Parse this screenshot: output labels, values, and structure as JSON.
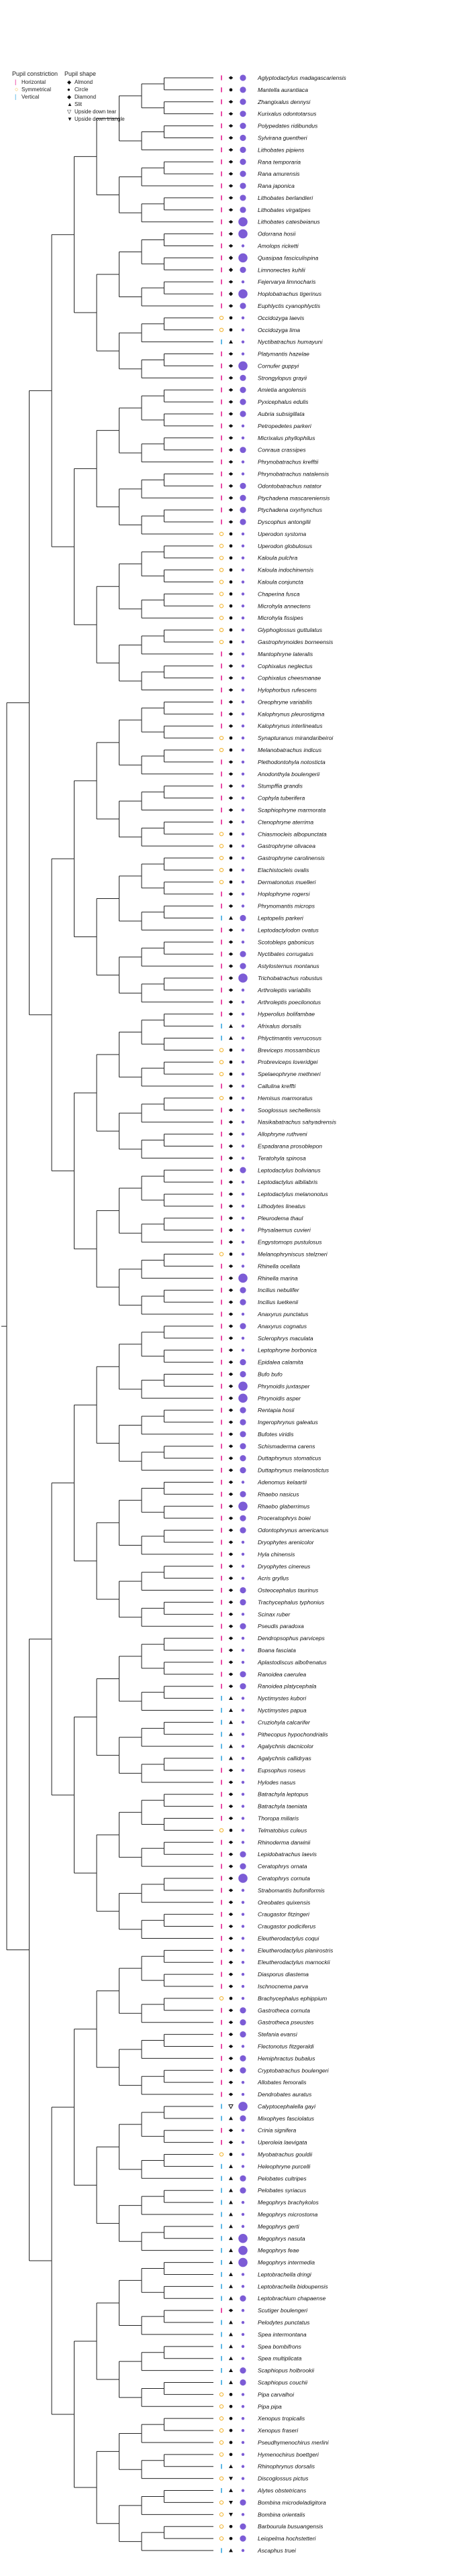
{
  "legend": {
    "constriction_title": "Pupil constriction",
    "shape_title": "Pupil shape",
    "constriction": [
      {
        "label": "Horizontal",
        "color": "#e41a8f",
        "glyph": "|"
      },
      {
        "label": "Symmetrical",
        "color": "#f2b530",
        "glyph": "○"
      },
      {
        "label": "Vertical",
        "color": "#33a6e0",
        "glyph": "|"
      }
    ],
    "shapes": [
      {
        "label": "Almond",
        "glyph": "◆"
      },
      {
        "label": "Circle",
        "glyph": "●"
      },
      {
        "label": "Diamond",
        "glyph": "◆"
      },
      {
        "label": "Slit",
        "glyph": "▲"
      },
      {
        "label": "Upside down tear",
        "glyph": "▽"
      },
      {
        "label": "Upside down triangle",
        "glyph": "▼"
      }
    ]
  },
  "colors": {
    "horizontal": "#e41a8f",
    "symmetrical": "#f2b530",
    "vertical": "#33a6e0",
    "size": "#7c5cd6",
    "line": "#222222"
  },
  "species": [
    [
      "Aglyptodactylus madagascariensis",
      "h",
      "almond",
      2
    ],
    [
      "Mantella aurantiaca",
      "h",
      "circle",
      2
    ],
    [
      "Zhangixalus dennysi",
      "h",
      "almond",
      2
    ],
    [
      "Kurixalus odontotarsus",
      "h",
      "almond",
      2
    ],
    [
      "Polypedates ridibundus",
      "h",
      "almond",
      2
    ],
    [
      "Sylvirana guentheri",
      "h",
      "almond",
      2
    ],
    [
      "Lithobates pipiens",
      "h",
      "almond",
      2
    ],
    [
      "Rana temporaria",
      "h",
      "almond",
      2
    ],
    [
      "Rana amurensis",
      "h",
      "almond",
      2
    ],
    [
      "Rana japonica",
      "h",
      "almond",
      2
    ],
    [
      "Lithobates berlandieri",
      "h",
      "almond",
      2
    ],
    [
      "Lithobates virgatipes",
      "h",
      "almond",
      2
    ],
    [
      "Lithobates catesbeianus",
      "h",
      "almond",
      3
    ],
    [
      "Odorrana hosii",
      "h",
      "almond",
      3
    ],
    [
      "Amolops ricketti",
      "h",
      "almond",
      1
    ],
    [
      "Quasipaa fasciculispina",
      "h",
      "diamond",
      3
    ],
    [
      "Limnonectes kuhlii",
      "h",
      "diamond",
      2
    ],
    [
      "Fejervarya limnocharis",
      "h",
      "almond",
      1
    ],
    [
      "Hoplobatrachus tigerinus",
      "h",
      "diamond",
      3
    ],
    [
      "Euphlyctis cyanophlyctis",
      "h",
      "almond",
      2
    ],
    [
      "Occidozyga laevis",
      "s",
      "circle",
      1
    ],
    [
      "Occidozyga lima",
      "s",
      "circle",
      1
    ],
    [
      "Nyctibatrachus humayuni",
      "v",
      "slit",
      1
    ],
    [
      "Platymantis hazelae",
      "h",
      "almond",
      1
    ],
    [
      "Cornufer guppyi",
      "h",
      "almond",
      3
    ],
    [
      "Strongylopus grayii",
      "h",
      "almond",
      2
    ],
    [
      "Amietia angolensis",
      "h",
      "almond",
      2
    ],
    [
      "Pyxicephalus edulis",
      "h",
      "almond",
      2
    ],
    [
      "Aubria subsigillata",
      "h",
      "almond",
      2
    ],
    [
      "Petropedetes parkeri",
      "h",
      "almond",
      1
    ],
    [
      "Micrixalus phyllophilus",
      "h",
      "almond",
      1
    ],
    [
      "Conraua crassipes",
      "h",
      "almond",
      2
    ],
    [
      "Phrynobatrachus krefftii",
      "h",
      "almond",
      1
    ],
    [
      "Phrynobatrachus natalensis",
      "h",
      "almond",
      1
    ],
    [
      "Odontobatrachus natator",
      "h",
      "almond",
      2
    ],
    [
      "Ptychadena mascareniensis",
      "h",
      "almond",
      2
    ],
    [
      "Ptychadena oxyrhynchus",
      "h",
      "almond",
      2
    ],
    [
      "Dyscophus antongilii",
      "h",
      "almond",
      2
    ],
    [
      "Uperodon systoma",
      "s",
      "circle",
      1
    ],
    [
      "Uperodon globulosus",
      "s",
      "circle",
      1
    ],
    [
      "Kaloula pulchra",
      "s",
      "circle",
      1
    ],
    [
      "Kaloula indochinensis",
      "s",
      "circle",
      1
    ],
    [
      "Kaloula conjuncta",
      "s",
      "circle",
      1
    ],
    [
      "Chaperina fusca",
      "s",
      "circle",
      1
    ],
    [
      "Microhyla annectens",
      "s",
      "circle",
      1
    ],
    [
      "Microhyla fissipes",
      "s",
      "circle",
      1
    ],
    [
      "Glyphoglossus guttulatus",
      "s",
      "circle",
      1
    ],
    [
      "Gastrophrynoides borneensis",
      "s",
      "circle",
      1
    ],
    [
      "Mantophryne lateralis",
      "h",
      "almond",
      1
    ],
    [
      "Cophixalus neglectus",
      "h",
      "almond",
      1
    ],
    [
      "Cophixalus cheesmanae",
      "h",
      "almond",
      1
    ],
    [
      "Hylophorbus rufescens",
      "h",
      "almond",
      1
    ],
    [
      "Oreophryne variabilis",
      "h",
      "almond",
      1
    ],
    [
      "Kalophrynus pleurostigma",
      "h",
      "almond",
      1
    ],
    [
      "Kalophrynus interlineatus",
      "h",
      "almond",
      1
    ],
    [
      "Synapturanus mirandaribeiroi",
      "s",
      "circle",
      1
    ],
    [
      "Melanobatrachus indicus",
      "s",
      "circle",
      1
    ],
    [
      "Plethodontohyla notosticta",
      "h",
      "almond",
      1
    ],
    [
      "Anodonthyla boulengerii",
      "h",
      "almond",
      1
    ],
    [
      "Stumpffia grandis",
      "h",
      "almond",
      1
    ],
    [
      "Cophyla tuberifera",
      "h",
      "almond",
      1
    ],
    [
      "Scaphiophryne marmorata",
      "h",
      "almond",
      1
    ],
    [
      "Ctenophryne aterrima",
      "h",
      "almond",
      1
    ],
    [
      "Chiasmocleis albopunctata",
      "s",
      "circle",
      1
    ],
    [
      "Gastrophryne olivacea",
      "s",
      "circle",
      1
    ],
    [
      "Gastrophryne carolinensis",
      "s",
      "circle",
      1
    ],
    [
      "Elachistocleis ovalis",
      "s",
      "circle",
      1
    ],
    [
      "Dermatonotus muelleri",
      "s",
      "circle",
      1
    ],
    [
      "Hoplophryne rogersi",
      "h",
      "almond",
      1
    ],
    [
      "Phrynomantis microps",
      "h",
      "almond",
      1
    ],
    [
      "Leptopelis parkeri",
      "v",
      "slit",
      2
    ],
    [
      "Leptodactylodon ovatus",
      "h",
      "almond",
      1
    ],
    [
      "Scotobleps gabonicus",
      "h",
      "almond",
      1
    ],
    [
      "Nyctibates corrugatus",
      "h",
      "almond",
      2
    ],
    [
      "Astylosternus montanus",
      "h",
      "almond",
      2
    ],
    [
      "Trichobatrachus robustus",
      "h",
      "almond",
      3
    ],
    [
      "Arthroleptis variabilis",
      "h",
      "almond",
      1
    ],
    [
      "Arthroleptis poecilonotus",
      "h",
      "almond",
      1
    ],
    [
      "Hyperolius bolifambae",
      "h",
      "almond",
      1
    ],
    [
      "Afrixalus dorsalis",
      "v",
      "slit",
      1
    ],
    [
      "Phlyctimantis verrucosus",
      "v",
      "slit",
      1
    ],
    [
      "Breviceps mossambicus",
      "s",
      "circle",
      1
    ],
    [
      "Probreviceps loveridgei",
      "s",
      "circle",
      1
    ],
    [
      "Spelaeophryne methneri",
      "s",
      "circle",
      1
    ],
    [
      "Callulina kreffti",
      "h",
      "almond",
      1
    ],
    [
      "Hemisus marmoratus",
      "s",
      "circle",
      1
    ],
    [
      "Sooglossus sechellensis",
      "h",
      "almond",
      1
    ],
    [
      "Nasikabatrachus sahyadrensis",
      "h",
      "almond",
      1
    ],
    [
      "Allophryne ruthveni",
      "h",
      "almond",
      1
    ],
    [
      "Espadarana prosoblepon",
      "h",
      "almond",
      1
    ],
    [
      "Teratohyla spinosa",
      "h",
      "almond",
      1
    ],
    [
      "Leptodactylus bolivianus",
      "h",
      "almond",
      2
    ],
    [
      "Leptodactylus albilabris",
      "h",
      "almond",
      1
    ],
    [
      "Leptodactylus melanonotus",
      "h",
      "almond",
      1
    ],
    [
      "Lithodytes lineatus",
      "h",
      "almond",
      1
    ],
    [
      "Pleurodema thaul",
      "h",
      "almond",
      1
    ],
    [
      "Physalaemus cuvieri",
      "h",
      "almond",
      1
    ],
    [
      "Engystomops pustulosus",
      "h",
      "almond",
      1
    ],
    [
      "Melanophryniscus stelzneri",
      "s",
      "circle",
      1
    ],
    [
      "Rhinella ocellata",
      "h",
      "almond",
      1
    ],
    [
      "Rhinella marina",
      "h",
      "almond",
      3
    ],
    [
      "Incilius nebulifer",
      "h",
      "almond",
      2
    ],
    [
      "Incilius luetkenii",
      "h",
      "almond",
      2
    ],
    [
      "Anaxyrus punctatus",
      "h",
      "almond",
      1
    ],
    [
      "Anaxyrus cognatus",
      "h",
      "almond",
      2
    ],
    [
      "Sclerophrys maculata",
      "h",
      "almond",
      1
    ],
    [
      "Leptophryne borbonica",
      "h",
      "almond",
      1
    ],
    [
      "Epidalea calamita",
      "h",
      "almond",
      2
    ],
    [
      "Bufo bufo",
      "h",
      "almond",
      2
    ],
    [
      "Phrynoidis juxtasper",
      "h",
      "almond",
      3
    ],
    [
      "Phrynoidis asper",
      "h",
      "almond",
      3
    ],
    [
      "Rentapia hosii",
      "h",
      "almond",
      2
    ],
    [
      "Ingerophrynus galeatus",
      "h",
      "almond",
      2
    ],
    [
      "Bufotes viridis",
      "h",
      "almond",
      2
    ],
    [
      "Schismaderma carens",
      "h",
      "almond",
      2
    ],
    [
      "Duttaphrynus stomaticus",
      "h",
      "almond",
      2
    ],
    [
      "Duttaphrynus melanostictus",
      "h",
      "almond",
      2
    ],
    [
      "Adenomus kelaartii",
      "h",
      "almond",
      1
    ],
    [
      "Rhaebo nasicus",
      "h",
      "almond",
      2
    ],
    [
      "Rhaebo glaberrimus",
      "h",
      "almond",
      3
    ],
    [
      "Proceratophrys boiei",
      "h",
      "almond",
      2
    ],
    [
      "Odontophrynus americanus",
      "h",
      "almond",
      2
    ],
    [
      "Dryophytes arenicolor",
      "h",
      "almond",
      1
    ],
    [
      "Hyla chinensis",
      "h",
      "almond",
      1
    ],
    [
      "Dryophytes cinereus",
      "h",
      "almond",
      1
    ],
    [
      "Acris gryllus",
      "h",
      "almond",
      1
    ],
    [
      "Osteocephalus taurinus",
      "h",
      "almond",
      2
    ],
    [
      "Trachycephalus typhonius",
      "h",
      "almond",
      2
    ],
    [
      "Scinax ruber",
      "h",
      "almond",
      1
    ],
    [
      "Pseudis paradoxa",
      "h",
      "almond",
      2
    ],
    [
      "Dendropsophus parviceps",
      "h",
      "almond",
      1
    ],
    [
      "Boana fasciata",
      "h",
      "almond",
      1
    ],
    [
      "Aplastodiscus albofrenatus",
      "h",
      "almond",
      1
    ],
    [
      "Ranoidea caerulea",
      "h",
      "almond",
      2
    ],
    [
      "Ranoidea platycephala",
      "h",
      "almond",
      2
    ],
    [
      "Nyctimystes kubori",
      "v",
      "slit",
      1
    ],
    [
      "Nyctimystes papua",
      "v",
      "slit",
      1
    ],
    [
      "Cruziohyla calcarifer",
      "v",
      "slit",
      1
    ],
    [
      "Pithecopus hypochondrialis",
      "v",
      "slit",
      1
    ],
    [
      "Agalychnis dacnicolor",
      "v",
      "slit",
      1
    ],
    [
      "Agalychnis callidryas",
      "v",
      "slit",
      1
    ],
    [
      "Eupsophus roseus",
      "h",
      "almond",
      1
    ],
    [
      "Hylodes nasus",
      "h",
      "almond",
      1
    ],
    [
      "Batrachyla leptopus",
      "h",
      "almond",
      1
    ],
    [
      "Batrachyla taeniata",
      "h",
      "almond",
      1
    ],
    [
      "Thoropa miliaris",
      "h",
      "almond",
      1
    ],
    [
      "Telmatobius culeus",
      "s",
      "circle",
      1
    ],
    [
      "Rhinoderma darwinii",
      "h",
      "almond",
      1
    ],
    [
      "Lepidobatrachus laevis",
      "h",
      "almond",
      2
    ],
    [
      "Ceratophrys ornata",
      "h",
      "almond",
      2
    ],
    [
      "Ceratophrys cornuta",
      "h",
      "almond",
      3
    ],
    [
      "Strabomantis bufoniformis",
      "h",
      "almond",
      1
    ],
    [
      "Oreobates quixensis",
      "h",
      "almond",
      1
    ],
    [
      "Craugastor fitzingeri",
      "h",
      "almond",
      1
    ],
    [
      "Craugastor podiciferus",
      "h",
      "almond",
      1
    ],
    [
      "Eleutherodactylus coqui",
      "h",
      "almond",
      1
    ],
    [
      "Eleutherodactylus planirostris",
      "h",
      "almond",
      1
    ],
    [
      "Eleutherodactylus marnockii",
      "h",
      "almond",
      1
    ],
    [
      "Diasporus diastema",
      "h",
      "almond",
      1
    ],
    [
      "Ischnocnema parva",
      "h",
      "almond",
      1
    ],
    [
      "Brachycephalus ephippium",
      "s",
      "circle",
      1
    ],
    [
      "Gastrotheca cornuta",
      "h",
      "almond",
      2
    ],
    [
      "Gastrotheca pseustes",
      "h",
      "almond",
      2
    ],
    [
      "Stefania evansi",
      "h",
      "almond",
      2
    ],
    [
      "Flectonotus fitzgeraldi",
      "h",
      "almond",
      1
    ],
    [
      "Hemiphractus bubalus",
      "h",
      "almond",
      2
    ],
    [
      "Cryptobatrachus boulengeri",
      "h",
      "almond",
      2
    ],
    [
      "Allobates femoralis",
      "h",
      "almond",
      1
    ],
    [
      "Dendrobates auratus",
      "h",
      "almond",
      1
    ],
    [
      "Calyptocephalella gayi",
      "v",
      "tear",
      3
    ],
    [
      "Mixophyes fasciolatus",
      "v",
      "slit",
      2
    ],
    [
      "Crinia signifera",
      "h",
      "almond",
      1
    ],
    [
      "Uperoleia laevigata",
      "h",
      "almond",
      1
    ],
    [
      "Myobatrachus gouldii",
      "s",
      "circle",
      1
    ],
    [
      "Heleophryne purcelli",
      "v",
      "slit",
      1
    ],
    [
      "Pelobates cultripes",
      "v",
      "slit",
      2
    ],
    [
      "Pelobates syriacus",
      "v",
      "slit",
      2
    ],
    [
      "Megophrys brachykolos",
      "v",
      "slit",
      1
    ],
    [
      "Megophrys microstoma",
      "v",
      "slit",
      1
    ],
    [
      "Megophrys gerti",
      "v",
      "slit",
      1
    ],
    [
      "Megophrys nasuta",
      "v",
      "slit",
      3
    ],
    [
      "Megophrys feae",
      "v",
      "slit",
      3
    ],
    [
      "Megophrys intermedia",
      "v",
      "slit",
      3
    ],
    [
      "Leptobrachella dringi",
      "v",
      "slit",
      1
    ],
    [
      "Leptobrachella bidoupensis",
      "v",
      "slit",
      1
    ],
    [
      "Leptobrachium chapaense",
      "v",
      "slit",
      2
    ],
    [
      "Scutiger boulengeri",
      "h",
      "almond",
      1
    ],
    [
      "Pelodytes punctatus",
      "v",
      "slit",
      1
    ],
    [
      "Spea intermontana",
      "v",
      "slit",
      1
    ],
    [
      "Spea bombifrons",
      "v",
      "slit",
      1
    ],
    [
      "Spea multiplicata",
      "v",
      "slit",
      1
    ],
    [
      "Scaphiopus holbrookii",
      "v",
      "slit",
      2
    ],
    [
      "Scaphiopus couchii",
      "v",
      "slit",
      2
    ],
    [
      "Pipa carvalhoi",
      "s",
      "circle",
      1
    ],
    [
      "Pipa pipa",
      "s",
      "circle",
      1
    ],
    [
      "Xenopus tropicalis",
      "s",
      "circle",
      1
    ],
    [
      "Xenopus fraseri",
      "s",
      "circle",
      1
    ],
    [
      "Pseudhymenochirus merlini",
      "s",
      "circle",
      1
    ],
    [
      "Hymenochirus boettgeri",
      "s",
      "circle",
      1
    ],
    [
      "Rhinophrynus dorsalis",
      "v",
      "slit",
      1
    ],
    [
      "Discoglossus pictus",
      "s",
      "triangle",
      1
    ],
    [
      "Alytes obstetricans",
      "v",
      "slit",
      1
    ],
    [
      "Bombina microdeladigitora",
      "s",
      "triangle",
      2
    ],
    [
      "Bombina orientalis",
      "s",
      "triangle",
      1
    ],
    [
      "Barbourula busuangensis",
      "s",
      "circle",
      2
    ],
    [
      "Leiopelma hochstetteri",
      "s",
      "circle",
      2
    ],
    [
      "Ascaphus truei",
      "v",
      "slit",
      1
    ]
  ]
}
